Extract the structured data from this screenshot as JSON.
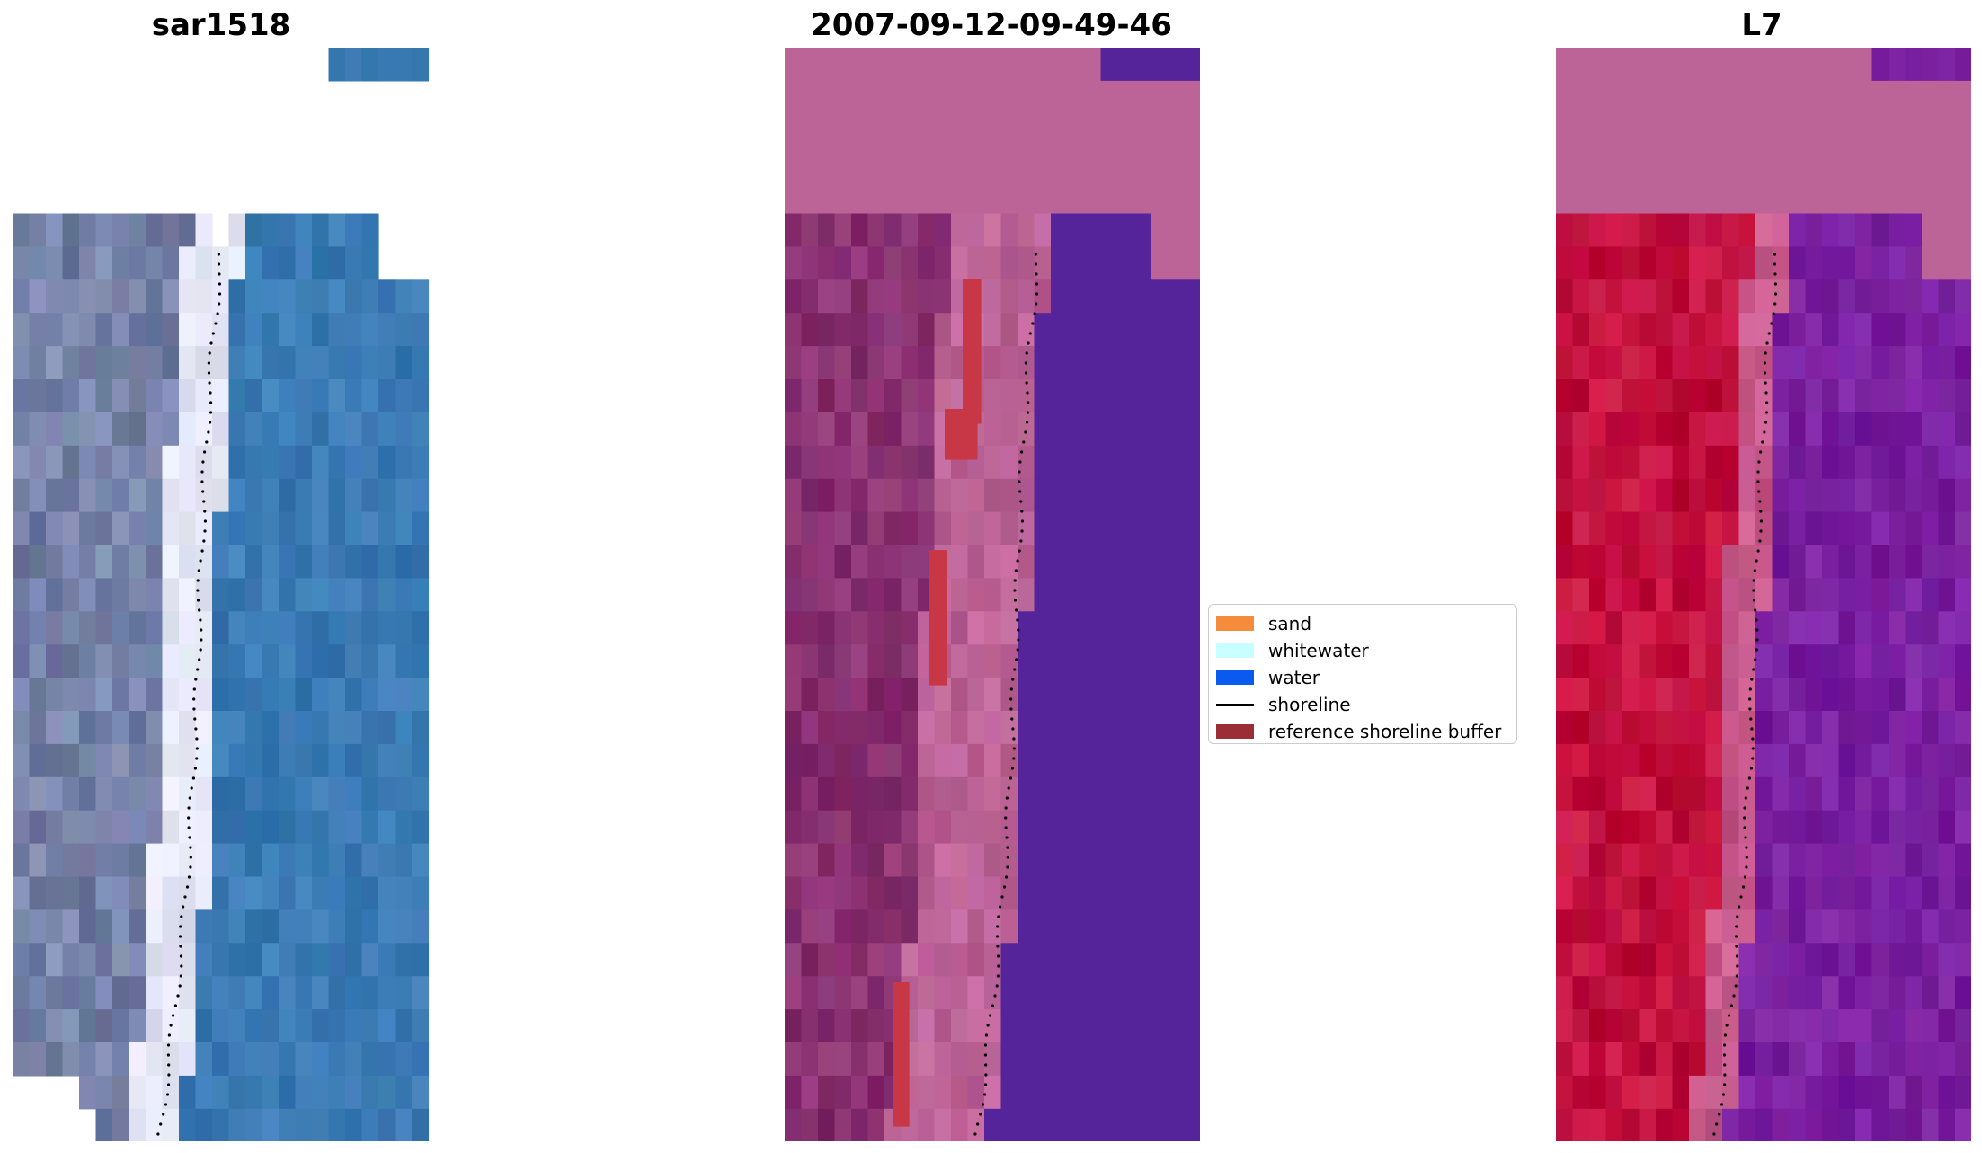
{
  "panels": [
    {
      "title": "sar1518",
      "kind": "rgb"
    },
    {
      "title": "2007-09-12-09-49-46",
      "kind": "classified"
    },
    {
      "title": "L7",
      "kind": "index"
    }
  ],
  "legend": {
    "items": [
      {
        "label": "sand",
        "type": "patch",
        "color": "#f48c3c"
      },
      {
        "label": "whitewater",
        "type": "patch",
        "color": "#c8ffff"
      },
      {
        "label": "water",
        "type": "patch",
        "color": "#0a5af0"
      },
      {
        "label": "shoreline",
        "type": "line",
        "color": "#000000"
      },
      {
        "label": "reference shoreline buffer",
        "type": "patch",
        "color": "#9b2d37"
      }
    ]
  },
  "colors": {
    "water_rgb": "#3a7ab4",
    "water_class": "#55239a",
    "land_class": "#bc6497",
    "buffer_class": "#c83746",
    "land_index": "#c2103e",
    "water_index": "#7a20a0",
    "nodata_index": "#bc6497"
  }
}
